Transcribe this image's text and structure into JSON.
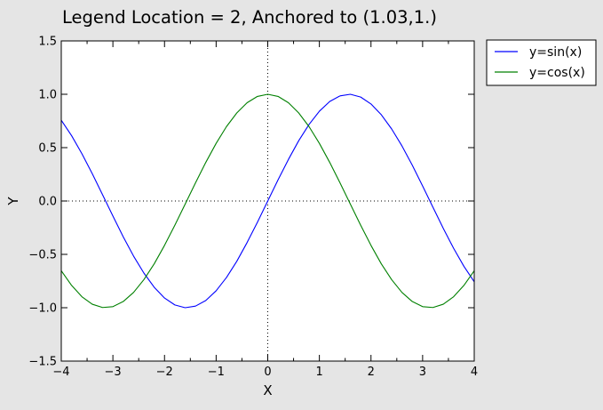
{
  "chart_data": {
    "type": "line",
    "title": "Legend Location = 2, Anchored to (1.03,1.)",
    "xlabel": "X",
    "ylabel": "Y",
    "xlim": [
      -4,
      4
    ],
    "ylim": [
      -1.5,
      1.5
    ],
    "xticks": [
      -4,
      -3,
      -2,
      -1,
      0,
      1,
      2,
      3,
      4
    ],
    "xtick_labels": [
      "−4",
      "−3",
      "−2",
      "−1",
      "0",
      "1",
      "2",
      "3",
      "4"
    ],
    "yticks": [
      -1.5,
      -1.0,
      -0.5,
      0.0,
      0.5,
      1.0,
      1.5
    ],
    "ytick_labels": [
      "−1.5",
      "−1.0",
      "−0.5",
      "0.0",
      "0.5",
      "1.0",
      "1.5"
    ],
    "grid": false,
    "zero_lines": {
      "x": 0,
      "y": 0,
      "style": "dotted"
    },
    "legend_position": "outside-top-right",
    "series": [
      {
        "name": "y=sin(x)",
        "color": "#0000ff",
        "x": [
          -4.0,
          -3.8,
          -3.6,
          -3.4,
          -3.2,
          -3.0,
          -2.8,
          -2.6,
          -2.4,
          -2.2,
          -2.0,
          -1.8,
          -1.6,
          -1.4,
          -1.2,
          -1.0,
          -0.8,
          -0.6,
          -0.4,
          -0.2,
          0.0,
          0.2,
          0.4,
          0.6,
          0.8,
          1.0,
          1.2,
          1.4,
          1.6,
          1.8,
          2.0,
          2.2,
          2.4,
          2.6,
          2.8,
          3.0,
          3.2,
          3.4,
          3.6,
          3.8,
          4.0
        ],
        "y": [
          0.757,
          0.612,
          0.443,
          0.256,
          0.058,
          -0.141,
          -0.335,
          -0.516,
          -0.675,
          -0.808,
          -0.909,
          -0.974,
          -1.0,
          -0.985,
          -0.932,
          -0.841,
          -0.717,
          -0.565,
          -0.389,
          -0.199,
          0.0,
          0.199,
          0.389,
          0.565,
          0.717,
          0.841,
          0.932,
          0.985,
          1.0,
          0.974,
          0.909,
          0.808,
          0.675,
          0.516,
          0.335,
          0.141,
          -0.058,
          -0.256,
          -0.443,
          -0.612,
          -0.757
        ]
      },
      {
        "name": "y=cos(x)",
        "color": "#008000",
        "x": [
          -4.0,
          -3.8,
          -3.6,
          -3.4,
          -3.2,
          -3.0,
          -2.8,
          -2.6,
          -2.4,
          -2.2,
          -2.0,
          -1.8,
          -1.6,
          -1.4,
          -1.2,
          -1.0,
          -0.8,
          -0.6,
          -0.4,
          -0.2,
          0.0,
          0.2,
          0.4,
          0.6,
          0.8,
          1.0,
          1.2,
          1.4,
          1.6,
          1.8,
          2.0,
          2.2,
          2.4,
          2.6,
          2.8,
          3.0,
          3.2,
          3.4,
          3.6,
          3.8,
          4.0
        ],
        "y": [
          -0.654,
          -0.791,
          -0.897,
          -0.967,
          -0.998,
          -0.99,
          -0.942,
          -0.857,
          -0.737,
          -0.589,
          -0.416,
          -0.227,
          -0.029,
          0.17,
          0.362,
          0.54,
          0.697,
          0.825,
          0.921,
          0.98,
          1.0,
          0.98,
          0.921,
          0.825,
          0.697,
          0.54,
          0.362,
          0.17,
          -0.029,
          -0.227,
          -0.416,
          -0.589,
          -0.737,
          -0.857,
          -0.942,
          -0.99,
          -0.998,
          -0.967,
          -0.897,
          -0.791,
          -0.654
        ]
      }
    ]
  }
}
